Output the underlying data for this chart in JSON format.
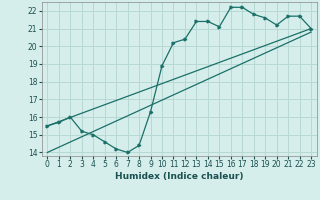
{
  "title": "",
  "xlabel": "Humidex (Indice chaleur)",
  "xlim": [
    -0.5,
    23.5
  ],
  "ylim": [
    13.8,
    22.5
  ],
  "xticks": [
    0,
    1,
    2,
    3,
    4,
    5,
    6,
    7,
    8,
    9,
    10,
    11,
    12,
    13,
    14,
    15,
    16,
    17,
    18,
    19,
    20,
    21,
    22,
    23
  ],
  "yticks": [
    14,
    15,
    16,
    17,
    18,
    19,
    20,
    21,
    22
  ],
  "bg_color": "#d6eeeb",
  "grid_color": "#b8d8d4",
  "line_color": "#1a7068",
  "curve1_x": [
    0,
    1,
    2,
    3,
    4,
    5,
    6,
    7,
    8,
    9,
    10,
    11,
    12,
    13,
    14,
    15,
    16,
    17,
    18,
    19,
    20,
    21,
    22,
    23
  ],
  "curve1_y": [
    15.5,
    15.7,
    16.0,
    15.2,
    15.0,
    14.6,
    14.2,
    14.0,
    14.4,
    16.3,
    18.9,
    20.2,
    20.4,
    21.4,
    21.4,
    21.1,
    22.2,
    22.2,
    21.8,
    21.6,
    21.2,
    21.7,
    21.7,
    21.0
  ],
  "curve2_x": [
    0,
    23
  ],
  "curve2_y": [
    15.5,
    21.0
  ],
  "curve3_x": [
    0,
    23
  ],
  "curve3_y": [
    14.0,
    20.8
  ],
  "xlabel_fontsize": 6.5,
  "tick_fontsize": 5.5
}
